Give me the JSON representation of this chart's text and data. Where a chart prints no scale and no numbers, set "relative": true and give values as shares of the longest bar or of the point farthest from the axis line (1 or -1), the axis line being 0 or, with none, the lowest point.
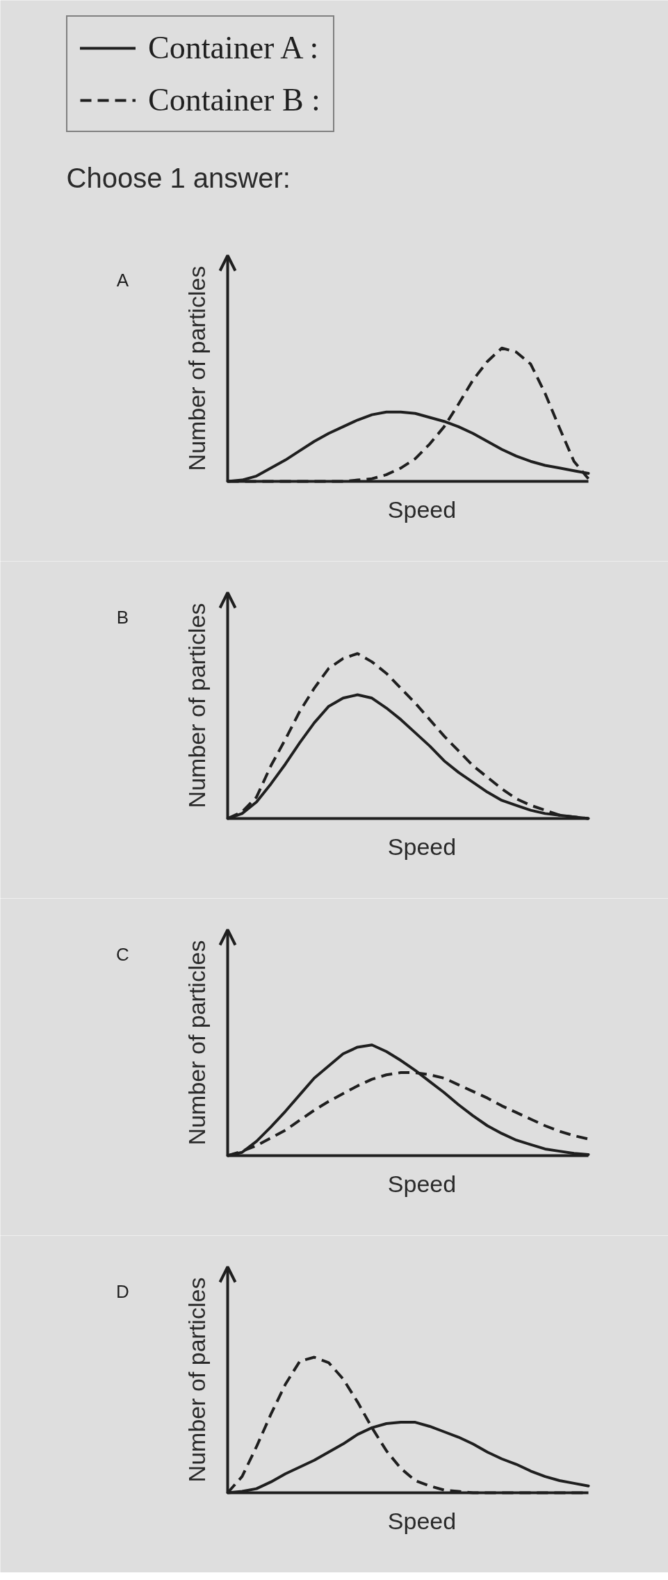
{
  "chart_data": [
    {
      "type": "line",
      "title": "A",
      "annotations": [
        "Choose 1 answer:"
      ],
      "xlabel": "Speed",
      "ylabel": "Number of particles",
      "relative": true,
      "legend": "top",
      "categories": [
        null,
        null,
        null,
        null,
        null,
        null,
        null,
        null,
        null,
        null,
        null,
        null,
        null,
        null,
        null,
        null,
        null,
        null,
        null,
        null,
        null,
        null,
        null,
        null,
        null,
        null
      ],
      "series": [
        {
          "name": "Container A :",
          "color": "#1f1f1f",
          "line_style": "solid",
          "values": [
            0,
            0.01,
            0.04,
            0.1,
            0.16,
            0.23,
            0.3,
            0.36,
            0.41,
            0.46,
            0.5,
            0.52,
            0.52,
            0.51,
            0.48,
            0.45,
            0.41,
            0.36,
            0.3,
            0.24,
            0.19,
            0.15,
            0.12,
            0.1,
            0.08,
            0.06
          ]
        },
        {
          "name": "Container B :",
          "color": "#1f1f1f",
          "line_style": "dashed",
          "values": [
            0,
            0,
            0,
            0,
            0,
            0,
            0,
            0,
            0,
            0.01,
            0.02,
            0.05,
            0.1,
            0.17,
            0.28,
            0.41,
            0.58,
            0.76,
            0.9,
            1.0,
            0.97,
            0.88,
            0.66,
            0.4,
            0.15,
            0.02
          ]
        }
      ]
    },
    {
      "type": "line",
      "title": "B",
      "xlabel": "Speed",
      "ylabel": "Number of particles",
      "relative": true,
      "categories": [
        null,
        null,
        null,
        null,
        null,
        null,
        null,
        null,
        null,
        null,
        null,
        null,
        null,
        null,
        null,
        null,
        null,
        null,
        null,
        null,
        null,
        null,
        null,
        null,
        null,
        null
      ],
      "series": [
        {
          "color": "#1f1f1f",
          "line_style": "solid",
          "values": [
            0,
            0.03,
            0.1,
            0.21,
            0.33,
            0.46,
            0.58,
            0.68,
            0.73,
            0.75,
            0.73,
            0.67,
            0.6,
            0.52,
            0.44,
            0.35,
            0.28,
            0.22,
            0.16,
            0.11,
            0.08,
            0.05,
            0.03,
            0.02,
            0.01,
            0
          ]
        },
        {
          "color": "#1f1f1f",
          "line_style": "dashed",
          "values": [
            0,
            0.04,
            0.13,
            0.32,
            0.48,
            0.65,
            0.79,
            0.91,
            0.97,
            1.0,
            0.95,
            0.88,
            0.79,
            0.7,
            0.6,
            0.5,
            0.41,
            0.32,
            0.25,
            0.18,
            0.12,
            0.08,
            0.05,
            0.02,
            0.01,
            0
          ]
        }
      ]
    },
    {
      "type": "line",
      "title": "C",
      "xlabel": "Speed",
      "ylabel": "Number of particles",
      "relative": true,
      "categories": [
        null,
        null,
        null,
        null,
        null,
        null,
        null,
        null,
        null,
        null,
        null,
        null,
        null,
        null,
        null,
        null,
        null,
        null,
        null,
        null,
        null,
        null,
        null,
        null,
        null,
        null
      ],
      "series": [
        {
          "color": "#1f1f1f",
          "line_style": "solid",
          "values": [
            0,
            0.03,
            0.13,
            0.26,
            0.4,
            0.55,
            0.7,
            0.81,
            0.92,
            0.98,
            1.0,
            0.94,
            0.86,
            0.77,
            0.67,
            0.57,
            0.46,
            0.36,
            0.27,
            0.2,
            0.14,
            0.1,
            0.06,
            0.04,
            0.02,
            0.01
          ]
        },
        {
          "color": "#1f1f1f",
          "line_style": "dashed",
          "values": [
            0,
            0.04,
            0.09,
            0.16,
            0.23,
            0.32,
            0.41,
            0.49,
            0.56,
            0.63,
            0.69,
            0.73,
            0.75,
            0.75,
            0.73,
            0.7,
            0.64,
            0.58,
            0.52,
            0.45,
            0.39,
            0.33,
            0.27,
            0.22,
            0.18,
            0.15
          ]
        }
      ]
    },
    {
      "type": "line",
      "title": "D",
      "xlabel": "Speed",
      "ylabel": "Number of particles",
      "relative": true,
      "categories": [
        null,
        null,
        null,
        null,
        null,
        null,
        null,
        null,
        null,
        null,
        null,
        null,
        null,
        null,
        null,
        null,
        null,
        null,
        null,
        null,
        null,
        null,
        null,
        null,
        null,
        null
      ],
      "series": [
        {
          "color": "#1f1f1f",
          "line_style": "solid",
          "values": [
            0,
            0.01,
            0.03,
            0.08,
            0.14,
            0.19,
            0.24,
            0.3,
            0.36,
            0.43,
            0.48,
            0.51,
            0.52,
            0.52,
            0.49,
            0.45,
            0.41,
            0.36,
            0.3,
            0.25,
            0.21,
            0.16,
            0.12,
            0.09,
            0.07,
            0.05
          ]
        },
        {
          "color": "#1f1f1f",
          "line_style": "dashed",
          "values": [
            0,
            0.12,
            0.34,
            0.58,
            0.8,
            0.97,
            1.0,
            0.96,
            0.84,
            0.67,
            0.48,
            0.31,
            0.18,
            0.09,
            0.05,
            0.02,
            0.01,
            0,
            0,
            0,
            0,
            0,
            0,
            0,
            0,
            0
          ]
        }
      ]
    }
  ]
}
